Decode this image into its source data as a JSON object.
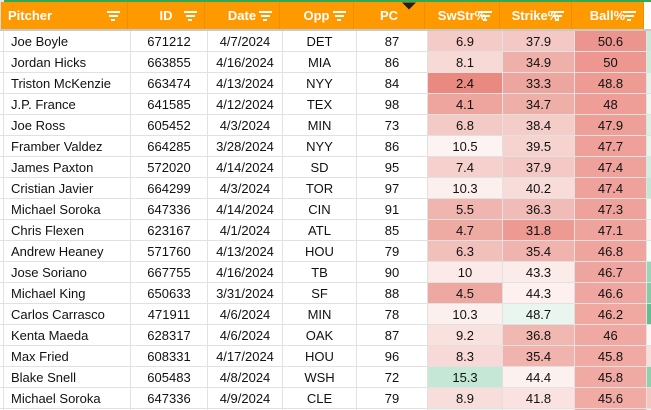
{
  "table": {
    "columns": [
      {
        "key": "pitcher",
        "label": "Pitcher",
        "align": "left",
        "filter_icon": "filter-lines"
      },
      {
        "key": "id",
        "label": "ID",
        "align": "center",
        "filter_icon": "filter-lines"
      },
      {
        "key": "date",
        "label": "Date",
        "align": "center",
        "filter_icon": "filter-lines"
      },
      {
        "key": "opp",
        "label": "Opp",
        "align": "center",
        "filter_icon": "filter-lines"
      },
      {
        "key": "pc",
        "label": "PC",
        "align": "center",
        "filter_icon": "funnel-active"
      },
      {
        "key": "swstr",
        "label": "SwStr%",
        "align": "center",
        "filter_icon": "filter-lines"
      },
      {
        "key": "strike",
        "label": "Strike%",
        "align": "center",
        "filter_icon": "filter-lines"
      },
      {
        "key": "ball",
        "label": "Ball%",
        "align": "center",
        "filter_icon": "filter-lines"
      }
    ],
    "rows": [
      {
        "pitcher": "Joe Boyle",
        "id": "671212",
        "date": "4/7/2024",
        "opp": "DET",
        "pc": "87",
        "swstr": "6.9",
        "strike": "37.9",
        "ball": "50.6",
        "swstr_bg": "#f4cbc7",
        "strike_bg": "#f4c9c5",
        "ball_bg": "#ec958e",
        "edge_bg": "#cbe7d7"
      },
      {
        "pitcher": "Jordan Hicks",
        "id": "663855",
        "date": "4/16/2024",
        "opp": "MIA",
        "pc": "86",
        "swstr": "8.1",
        "strike": "34.9",
        "ball": "50",
        "swstr_bg": "#f7d9d6",
        "strike_bg": "#efb0aa",
        "ball_bg": "#ed9790",
        "edge_bg": "#cfe9da"
      },
      {
        "pitcher": "Triston McKenzie",
        "id": "663474",
        "date": "4/13/2024",
        "opp": "NYY",
        "pc": "84",
        "swstr": "2.4",
        "strike": "33.3",
        "ball": "48.8",
        "swstr_bg": "#e9897f",
        "strike_bg": "#eda69f",
        "ball_bg": "#ee9b94",
        "edge_bg": "#e4f2eb"
      },
      {
        "pitcher": "J.P. France",
        "id": "641585",
        "date": "4/12/2024",
        "opp": "TEX",
        "pc": "98",
        "swstr": "4.1",
        "strike": "34.7",
        "ball": "48",
        "swstr_bg": "#eda59e",
        "strike_bg": "#efafa9",
        "ball_bg": "#ee9e97",
        "edge_bg": "#eef7f2"
      },
      {
        "pitcher": "Joe Ross",
        "id": "605452",
        "date": "4/3/2024",
        "opp": "MIN",
        "pc": "73",
        "swstr": "6.8",
        "strike": "38.4",
        "ball": "47.9",
        "swstr_bg": "#f4cac6",
        "strike_bg": "#f4cdc9",
        "ball_bg": "#ee9f98",
        "edge_bg": "#dceee5"
      },
      {
        "pitcher": "Framber Valdez",
        "id": "664285",
        "date": "3/28/2024",
        "opp": "NYY",
        "pc": "86",
        "swstr": "10.5",
        "strike": "39.5",
        "ball": "47.7",
        "swstr_bg": "#fdf3f2",
        "strike_bg": "#f6d3cf",
        "ball_bg": "#efa09a",
        "edge_bg": "#e8f5ee"
      },
      {
        "pitcher": "James Paxton",
        "id": "572020",
        "date": "4/14/2024",
        "opp": "SD",
        "pc": "95",
        "swstr": "7.4",
        "strike": "37.9",
        "ball": "47.4",
        "swstr_bg": "#f5d0cc",
        "strike_bg": "#f4c9c5",
        "ball_bg": "#efa29b",
        "edge_bg": "#d4ebdf"
      },
      {
        "pitcher": "Cristian Javier",
        "id": "664299",
        "date": "4/3/2024",
        "opp": "TOR",
        "pc": "97",
        "swstr": "10.3",
        "strike": "40.2",
        "ball": "47.4",
        "swstr_bg": "#fcf0ee",
        "strike_bg": "#f8dcd9",
        "ball_bg": "#efa29b",
        "edge_bg": "#c6e5d4"
      },
      {
        "pitcher": "Michael Soroka",
        "id": "647336",
        "date": "4/14/2024",
        "opp": "CIN",
        "pc": "91",
        "swstr": "5.5",
        "strike": "36.3",
        "ball": "47.3",
        "swstr_bg": "#f0b5af",
        "strike_bg": "#f1bcb7",
        "ball_bg": "#efa29c",
        "edge_bg": "#f2f9f5"
      },
      {
        "pitcher": "Chris Flexen",
        "id": "623167",
        "date": "4/1/2024",
        "opp": "ATL",
        "pc": "85",
        "swstr": "4.7",
        "strike": "31.8",
        "ball": "47.1",
        "swstr_bg": "#eeaba4",
        "strike_bg": "#ec9a92",
        "ball_bg": "#efa39d",
        "edge_bg": "#fceeec"
      },
      {
        "pitcher": "Andrew Heaney",
        "id": "571760",
        "date": "4/13/2024",
        "opp": "HOU",
        "pc": "79",
        "swstr": "6.3",
        "strike": "35.4",
        "ball": "46.8",
        "swstr_bg": "#f2c0bb",
        "strike_bg": "#f0b3ad",
        "ball_bg": "#efa59e",
        "edge_bg": "#f5fbf8"
      },
      {
        "pitcher": "Jose Soriano",
        "id": "667755",
        "date": "4/16/2024",
        "opp": "TB",
        "pc": "90",
        "swstr": "10",
        "strike": "43.3",
        "ball": "46.7",
        "swstr_bg": "#fbeae8",
        "strike_bg": "#fbecea",
        "ball_bg": "#efa59f",
        "edge_bg": "#9bd5b7"
      },
      {
        "pitcher": "Michael King",
        "id": "650633",
        "date": "3/31/2024",
        "opp": "SF",
        "pc": "88",
        "swstr": "4.5",
        "strike": "44.3",
        "ball": "46.6",
        "swstr_bg": "#eda8a1",
        "strike_bg": "#fdf0ef",
        "ball_bg": "#efa6a0",
        "edge_bg": "#83cca6"
      },
      {
        "pitcher": "Carlos Carrasco",
        "id": "471911",
        "date": "4/6/2024",
        "opp": "MIN",
        "pc": "78",
        "swstr": "10.3",
        "strike": "48.7",
        "ball": "46.2",
        "swstr_bg": "#fcf0ee",
        "strike_bg": "#e9f6ef",
        "ball_bg": "#f0a8a1",
        "edge_bg": "#5fbf90"
      },
      {
        "pitcher": "Kenta Maeda",
        "id": "628317",
        "date": "4/6/2024",
        "opp": "OAK",
        "pc": "87",
        "swstr": "9.2",
        "strike": "36.8",
        "ball": "46",
        "swstr_bg": "#f9e1de",
        "strike_bg": "#f1b8b2",
        "ball_bg": "#f0a9a2",
        "edge_bg": "#fdf4f3"
      },
      {
        "pitcher": "Max Fried",
        "id": "608331",
        "date": "4/17/2024",
        "opp": "HOU",
        "pc": "96",
        "swstr": "8.3",
        "strike": "35.4",
        "ball": "45.8",
        "swstr_bg": "#f7dad7",
        "strike_bg": "#f0b3ad",
        "ball_bg": "#f0aaa3",
        "edge_bg": "#f8dfdc"
      },
      {
        "pitcher": "Blake Snell",
        "id": "605483",
        "date": "4/8/2024",
        "opp": "WSH",
        "pc": "72",
        "swstr": "15.3",
        "strike": "44.4",
        "ball": "45.8",
        "swstr_bg": "#c5e8d6",
        "strike_bg": "#fdf1f0",
        "ball_bg": "#f0aaa3",
        "edge_bg": "#8fd0ad"
      },
      {
        "pitcher": "Michael Soroka",
        "id": "647336",
        "date": "4/9/2024",
        "opp": "CLE",
        "pc": "79",
        "swstr": "8.9",
        "strike": "41.8",
        "ball": "45.6",
        "swstr_bg": "#f8dedb",
        "strike_bg": "#f9e2e0",
        "ball_bg": "#f0aba4",
        "edge_bg": "#f5c5c0"
      }
    ],
    "partial_next_row": {
      "pitcher": "",
      "id": "",
      "date": "",
      "opp": "",
      "pc": "",
      "swstr": "",
      "strike": "",
      "ball": "",
      "swstr_bg": "#e9f5ee",
      "strike_bg": "#fdf1f0",
      "ball_bg": "#f0a9a2",
      "edge_bg": "#eaf6f0"
    }
  },
  "colors": {
    "header_bg": "#ff9900",
    "header_text": "#ffffff",
    "header_grid": "#ed8f00",
    "top_line": "#34a853",
    "frozen_divider": "#c9c9c9",
    "gridline": "#e1e1e1",
    "cell_text": "#111111",
    "active_funnel": "#212121",
    "scale_red": "#e67c73",
    "scale_white": "#ffffff",
    "scale_green": "#57bb8a"
  }
}
